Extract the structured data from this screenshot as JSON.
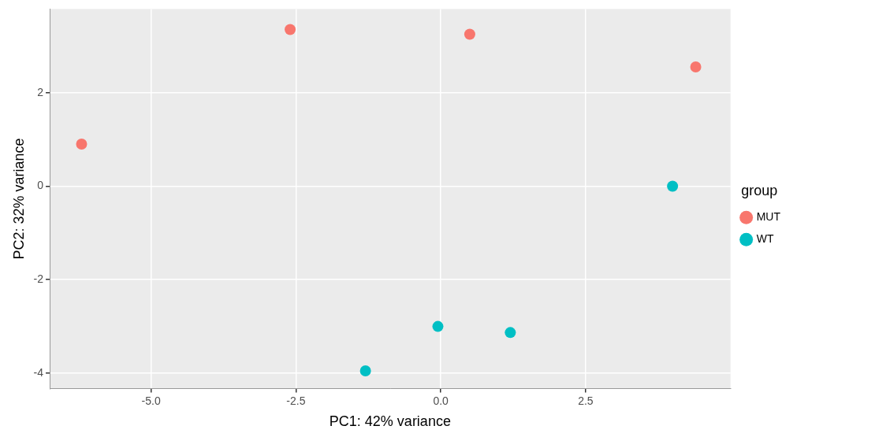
{
  "chart_data": {
    "type": "scatter",
    "x_label": "PC1: 42% variance",
    "y_label": "PC2: 32% variance",
    "legend_title": "group",
    "legend": "right",
    "grid": true,
    "xlim": [
      -6.75,
      5.0
    ],
    "ylim": [
      -4.33,
      3.79
    ],
    "xticks": [
      {
        "value": -5,
        "label": "-5.0"
      },
      {
        "value": -2.5,
        "label": "-2.5"
      },
      {
        "value": 0,
        "label": "0.0"
      },
      {
        "value": 2.5,
        "label": "2.5"
      }
    ],
    "yticks": [
      -4,
      -2,
      0,
      2
    ],
    "series": [
      {
        "name": "MUT",
        "color": "#F8766D",
        "marker": "circle",
        "x": [
          -6.2,
          -2.6,
          0.5,
          4.4
        ],
        "y": [
          0.9,
          3.35,
          3.25,
          2.55
        ]
      },
      {
        "name": "WT",
        "color": "#00BFC4",
        "marker": "circle",
        "x": [
          4.0,
          -0.05,
          1.2,
          -1.3
        ],
        "y": [
          0.0,
          -3.0,
          -3.13,
          -3.95
        ]
      }
    ]
  }
}
